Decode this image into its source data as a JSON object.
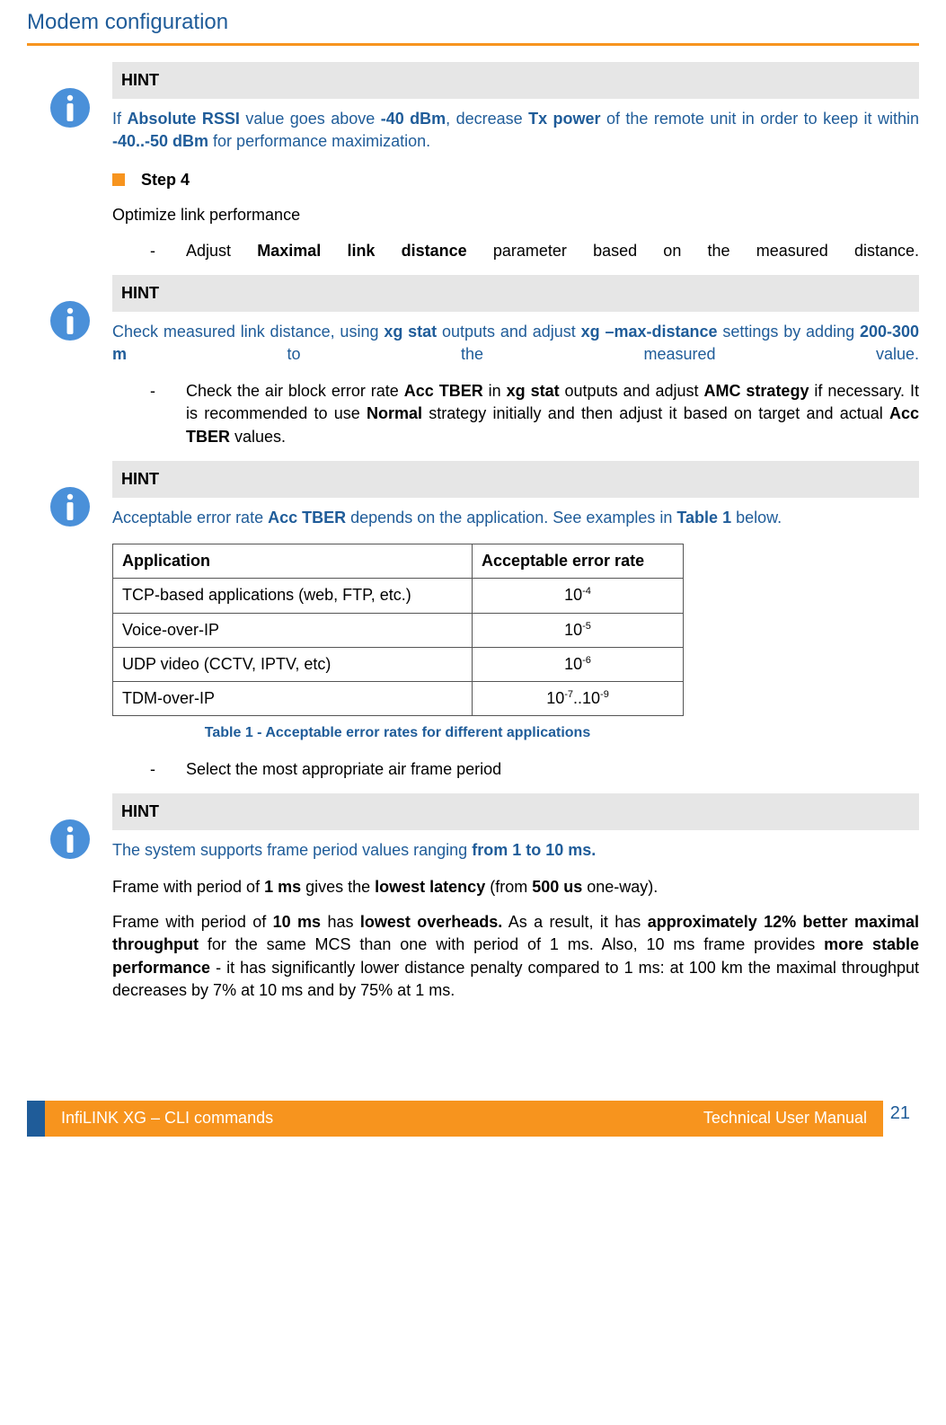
{
  "header": {
    "title": "Modem configuration"
  },
  "hint1": {
    "label": "HINT",
    "body": "If <b>Absolute RSSI</b> value goes above <b>-40 dBm</b>, decrease <b>Tx power</b> of the remote unit in order to keep it within <b>-40..-50 dBm</b> for performance maximization."
  },
  "step4": {
    "label": "Step 4",
    "intro": "Optimize link performance",
    "bullet1": "Adjust <b>Maximal link distance</b> parameter based on the measured distance."
  },
  "hint2": {
    "label": "HINT",
    "body": "Check measured link distance, using <b>xg stat</b> outputs and adjust <b>xg –max-distance</b> settings by adding <b>200-300 m</b> to the measured value."
  },
  "bullet2": "Check the air block error rate <b>Acc TBER</b> in <b>xg stat</b> outputs and adjust <b>AMC strategy</b> if necessary. It is recommended to use <b>Normal</b> strategy initially and then adjust it based on target and actual <b>Acc TBER</b> values.",
  "hint3": {
    "label": "HINT",
    "body": "Acceptable error rate <b>Acc TBER</b> depends on the application. See examples in <b>Table 1</b> below."
  },
  "table": {
    "headers": [
      "Application",
      "Acceptable error rate"
    ],
    "rows": [
      [
        "TCP-based applications (web, FTP, etc.)",
        "10<sup>-4</sup>"
      ],
      [
        "Voice-over-IP",
        "10<sup>-5</sup>"
      ],
      [
        "UDP video (CCTV, IPTV, etc)",
        "10<sup>-6</sup>"
      ],
      [
        "TDM-over-IP",
        "10<sup>-7</sup>..10<sup>-9</sup>"
      ]
    ],
    "caption": "Table 1 - Acceptable error rates for different applications"
  },
  "bullet3": "Select the most appropriate air frame period",
  "hint4": {
    "label": "HINT",
    "body": "The system supports frame period values ranging <b>from 1 to 10 ms.</b>"
  },
  "para_1ms": "Frame with period of <b>1 ms</b> gives the <b>lowest latency</b> (from <b>500 us</b> one-way).",
  "para_10ms": "Frame with period of <b>10 ms</b> has <b>lowest overheads.</b> As a result, it has <b>approximately 12% better maximal throughput</b> for the same MCS than one with period of 1 ms. Also, 10 ms frame provides <b>more stable performance</b> - it has significantly lower distance penalty compared to 1 ms: at 100 km the maximal throughput decreases by 7% at 10 ms and by 75% at 1 ms.",
  "footer": {
    "left": "InfiLINK XG – CLI commands",
    "right": "Technical User Manual",
    "page": "21"
  },
  "colors": {
    "brand_blue": "#1f5c99",
    "brand_orange": "#f7941e",
    "hint_bg": "#e6e6e6",
    "info_icon": "#4a90d9"
  }
}
